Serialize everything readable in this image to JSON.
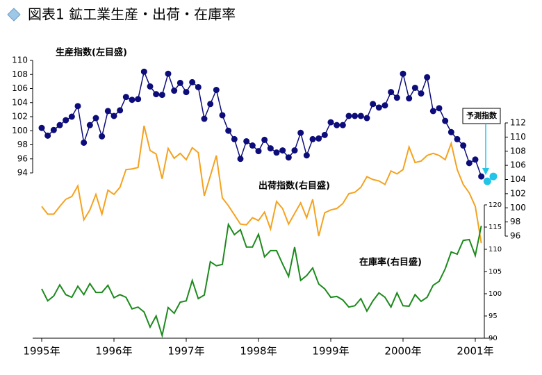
{
  "chart_data": {
    "type": "line",
    "title": "図表1 鉱工業生産・出荷・在庫率",
    "categories": [
      "1995年",
      null,
      null,
      null,
      null,
      null,
      null,
      null,
      null,
      null,
      null,
      null,
      "1996年",
      null,
      null,
      null,
      null,
      null,
      null,
      null,
      null,
      null,
      null,
      null,
      "1997年",
      null,
      null,
      null,
      null,
      null,
      null,
      null,
      null,
      null,
      null,
      null,
      "1998年",
      null,
      null,
      null,
      null,
      null,
      null,
      null,
      null,
      null,
      null,
      null,
      "1999年",
      null,
      null,
      null,
      null,
      null,
      null,
      null,
      null,
      null,
      null,
      null,
      "2000年",
      null,
      null,
      null,
      null,
      null,
      null,
      null,
      null,
      null,
      null,
      null,
      "2001年",
      null,
      null,
      null
    ],
    "ylim": [
      94,
      110
    ],
    "yticks": [
      94,
      96,
      98,
      100,
      102,
      104,
      106,
      108,
      110
    ],
    "y2lim": [
      96,
      112
    ],
    "y2ticks": [
      96,
      98,
      100,
      102,
      104,
      106,
      108,
      110,
      112
    ],
    "y3lim": [
      90,
      120
    ],
    "y3ticks": [
      90,
      95,
      100,
      105,
      110,
      115,
      120
    ],
    "annotations": [
      {
        "text": "生産指数(左目盛)"
      },
      {
        "text": "出荷指数(右目盛)"
      },
      {
        "text": "在庫率(右目盛)"
      },
      {
        "text": "予測指数"
      }
    ],
    "series": [
      {
        "name": "生産指数",
        "color": "#0c0c7a",
        "axis": "y",
        "markers": true,
        "values": [
          100.4,
          99.3,
          100.1,
          100.8,
          101.5,
          102.0,
          103.5,
          98.3,
          100.8,
          101.8,
          99.2,
          102.8,
          102.1,
          102.9,
          104.8,
          104.4,
          104.5,
          108.4,
          106.3,
          105.2,
          105.1,
          108.1,
          105.7,
          106.8,
          105.5,
          106.9,
          106.2,
          101.7,
          103.8,
          105.8,
          102.2,
          100.0,
          98.8,
          96.0,
          98.5,
          97.9,
          97.1,
          98.7,
          97.5,
          96.9,
          97.2,
          96.2,
          97.2,
          99.7,
          96.5,
          98.8,
          98.9,
          99.4,
          101.2,
          100.8,
          100.8,
          102.1,
          102.1,
          102.1,
          101.8,
          103.8,
          103.3,
          103.6,
          105.5,
          104.7,
          108.1,
          104.6,
          106.1,
          105.3,
          107.6,
          102.8,
          103.2,
          101.4,
          99.8,
          98.8,
          97.9,
          95.4,
          95.9,
          93.5,
          null,
          null
        ]
      },
      {
        "name": "予測指数",
        "color": "#22c4e8",
        "axis": "y",
        "markers": true,
        "values": [
          null,
          null,
          null,
          null,
          null,
          null,
          null,
          null,
          null,
          null,
          null,
          null,
          null,
          null,
          null,
          null,
          null,
          null,
          null,
          null,
          null,
          null,
          null,
          null,
          null,
          null,
          null,
          null,
          null,
          null,
          null,
          null,
          null,
          null,
          null,
          null,
          null,
          null,
          null,
          null,
          null,
          null,
          null,
          null,
          null,
          null,
          null,
          null,
          null,
          null,
          null,
          null,
          null,
          null,
          null,
          null,
          null,
          null,
          null,
          null,
          null,
          null,
          null,
          null,
          null,
          null,
          null,
          null,
          null,
          null,
          null,
          null,
          null,
          null,
          92.8,
          93.5
        ]
      },
      {
        "name": "出荷指数",
        "color": "#f5a21e",
        "axis": "y2",
        "markers": false,
        "values": [
          100.2,
          99.1,
          99.1,
          100.2,
          101.2,
          101.6,
          103.1,
          98.3,
          99.7,
          101.9,
          99.1,
          102.5,
          101.9,
          102.9,
          105.4,
          105.5,
          105.7,
          111.6,
          108.1,
          107.6,
          104.1,
          108.4,
          107.0,
          107.7,
          106.8,
          108.5,
          107.8,
          101.7,
          104.5,
          107.4,
          101.4,
          100.3,
          99.0,
          97.7,
          97.6,
          98.6,
          98.2,
          99.4,
          97.0,
          100.9,
          99.9,
          97.7,
          99.2,
          100.7,
          98.6,
          101.2,
          96.0,
          99.3,
          99.7,
          99.9,
          100.6,
          102.0,
          102.2,
          102.9,
          104.4,
          104.0,
          103.8,
          103.3,
          105.2,
          104.8,
          105.4,
          108.6,
          106.4,
          106.6,
          107.4,
          107.7,
          107.4,
          106.8,
          109.1,
          105.4,
          103.3,
          102.1,
          100.2,
          95.0,
          null,
          null
        ]
      },
      {
        "name": "在庫率",
        "color": "#1c8a1c",
        "axis": "y3",
        "markers": false,
        "values": [
          101.1,
          98.4,
          99.5,
          102.0,
          99.8,
          99.2,
          101.7,
          99.8,
          102.3,
          100.3,
          100.3,
          101.9,
          99.1,
          99.8,
          99.2,
          96.6,
          97.0,
          95.9,
          92.5,
          95.0,
          90.6,
          96.9,
          95.6,
          98.1,
          98.4,
          103.0,
          98.9,
          99.7,
          107.2,
          106.3,
          106.6,
          115.6,
          113.3,
          114.4,
          110.5,
          110.5,
          113.4,
          108.3,
          109.7,
          109.7,
          106.7,
          103.9,
          110.5,
          103.0,
          104.1,
          105.8,
          102.2,
          101.1,
          99.2,
          99.4,
          98.6,
          97.0,
          97.3,
          98.9,
          96.1,
          98.4,
          100.2,
          99.2,
          97.0,
          100.2,
          97.3,
          97.2,
          99.8,
          98.3,
          99.2,
          101.9,
          102.8,
          105.6,
          109.4,
          108.9,
          112.0,
          112.2,
          108.6,
          115.3,
          null,
          null
        ]
      }
    ]
  }
}
